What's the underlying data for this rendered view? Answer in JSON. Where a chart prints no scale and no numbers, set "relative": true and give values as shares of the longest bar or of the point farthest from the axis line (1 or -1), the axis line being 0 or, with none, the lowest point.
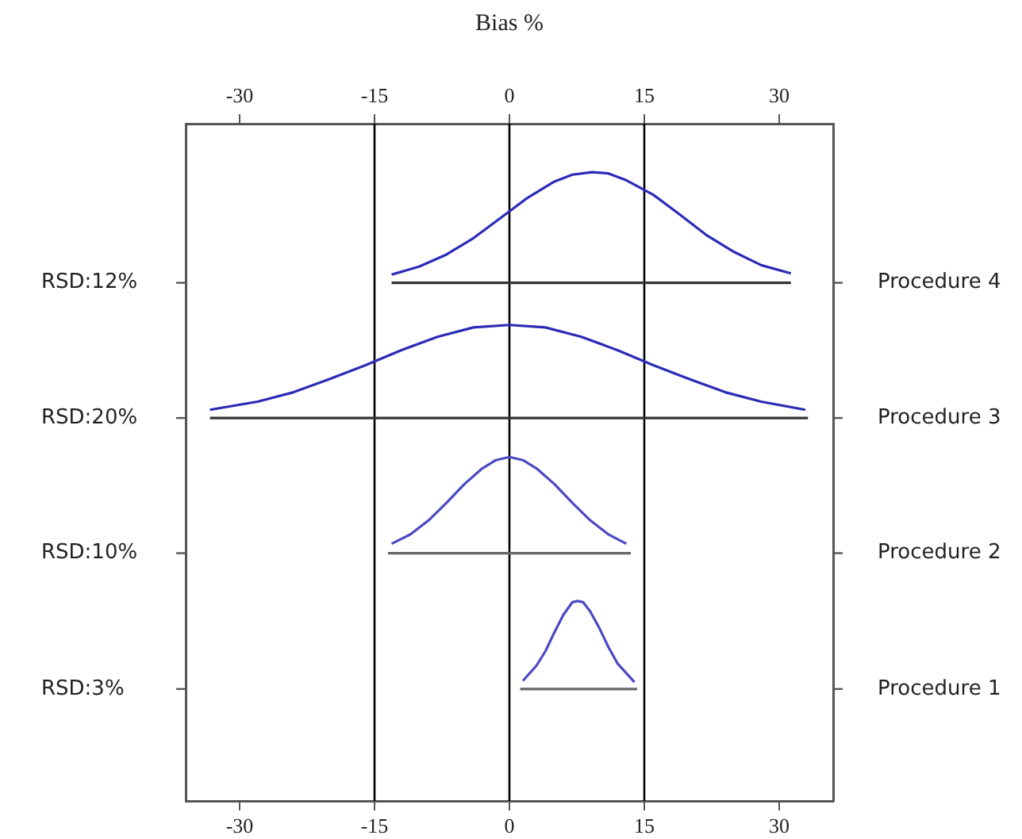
{
  "chart_data": {
    "type": "line",
    "relative": true,
    "x2label": "Bias %",
    "marker": "none",
    "line_style": "solid",
    "grid": false,
    "legend": false,
    "xlim": [
      -36,
      36
    ],
    "xticks": [
      -30,
      -15,
      0,
      15,
      30
    ],
    "x2lim": [
      -36,
      36
    ],
    "x2ticks": [
      -30,
      -15,
      0,
      15,
      30
    ],
    "annotations": [
      "RSD:12%",
      "RSD:20%",
      "RSD:10%",
      "RSD:3%",
      "Procedure 4",
      "Procedure 3",
      "Procedure 2",
      "Procedure 1"
    ],
    "ref_lines": [
      {
        "axis": "x",
        "value": -15,
        "color": "#000000"
      },
      {
        "axis": "x",
        "value": 0,
        "color": "#000000"
      },
      {
        "axis": "x",
        "value": 15,
        "color": "#000000"
      }
    ],
    "series": [
      {
        "color": "#333333",
        "x": [
          -13.1,
          31.3
        ],
        "values": [
          0.824,
          0.824
        ]
      },
      {
        "color": "#2b2bb8",
        "x": [
          -13.1,
          -10,
          -7,
          -4,
          -1,
          2,
          5,
          7,
          9.2,
          11,
          13,
          16,
          19,
          22,
          25,
          28,
          31.3
        ],
        "values": [
          0.837,
          0.85,
          0.869,
          0.895,
          0.927,
          0.959,
          0.985,
          0.996,
          1,
          0.998,
          0.987,
          0.964,
          0.932,
          0.899,
          0.873,
          0.852,
          0.839
        ]
      },
      {
        "color": "#333333",
        "x": [
          -33.3,
          33.2
        ],
        "values": [
          0.609,
          0.609
        ]
      },
      {
        "color": "#2b2bb8",
        "x": [
          -33.3,
          -28,
          -24,
          -20,
          -16,
          -12,
          -8,
          -4,
          0,
          4,
          8,
          12,
          16,
          20,
          24,
          28,
          32.9
        ],
        "values": [
          0.622,
          0.635,
          0.65,
          0.671,
          0.693,
          0.717,
          0.738,
          0.753,
          0.757,
          0.753,
          0.738,
          0.717,
          0.693,
          0.671,
          0.65,
          0.635,
          0.622
        ]
      },
      {
        "color": "#666666",
        "x": [
          -13.5,
          13.5
        ],
        "values": [
          0.394,
          0.394
        ]
      },
      {
        "color": "#4a4ac4",
        "x": [
          -13.1,
          -11,
          -9,
          -7,
          -5,
          -3,
          -1.5,
          0,
          1.5,
          3,
          5,
          7,
          9,
          11,
          13
        ],
        "values": [
          0.409,
          0.424,
          0.446,
          0.474,
          0.504,
          0.529,
          0.542,
          0.547,
          0.542,
          0.529,
          0.504,
          0.474,
          0.446,
          0.424,
          0.409
        ]
      },
      {
        "color": "#666666",
        "x": [
          1.2,
          14.2
        ],
        "values": [
          0.178,
          0.178
        ]
      },
      {
        "color": "#4a4ac4",
        "x": [
          1.5,
          3,
          4,
          5,
          6,
          7,
          7.6,
          8.2,
          9,
          10,
          11,
          12,
          13.9
        ],
        "values": [
          0.191,
          0.215,
          0.238,
          0.268,
          0.296,
          0.316,
          0.318,
          0.316,
          0.301,
          0.275,
          0.245,
          0.219,
          0.189
        ]
      }
    ]
  }
}
